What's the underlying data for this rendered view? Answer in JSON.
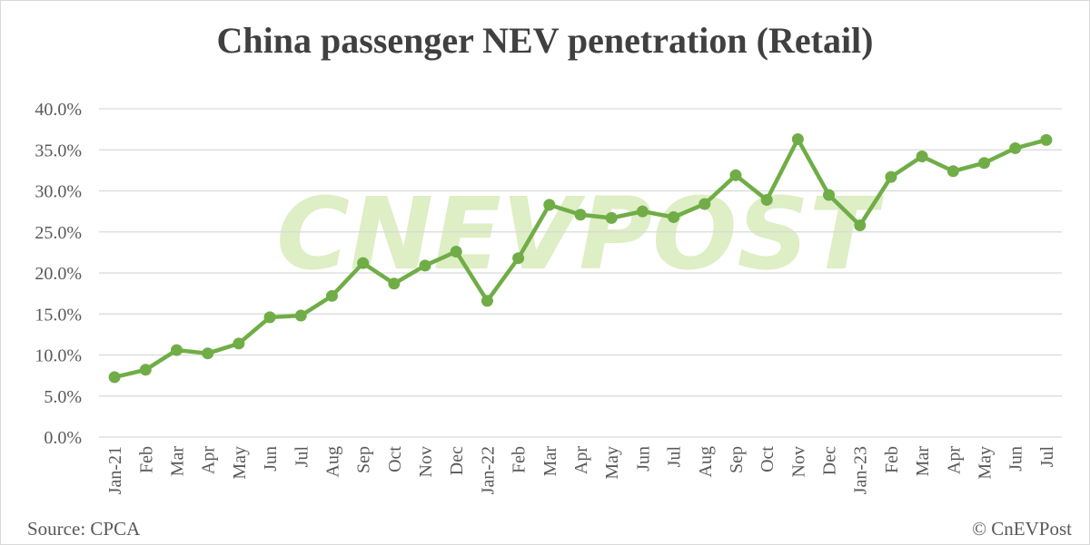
{
  "chart_data": {
    "type": "line",
    "title": "China passenger NEV penetration (Retail)",
    "xlabel": "",
    "ylabel": "",
    "categories": [
      "Jan-21",
      "Feb",
      "Mar",
      "Apr",
      "May",
      "Jun",
      "Jul",
      "Aug",
      "Sep",
      "Oct",
      "Nov",
      "Dec",
      "Jan-22",
      "Feb",
      "Mar",
      "Apr",
      "May",
      "Jun",
      "Jul",
      "Aug",
      "Sep",
      "Oct",
      "Nov",
      "Dec",
      "Jan-23",
      "Feb",
      "Mar",
      "Apr",
      "May",
      "Jun",
      "Jul"
    ],
    "series": [
      {
        "values": [
          7.3,
          8.2,
          10.6,
          10.2,
          11.4,
          14.6,
          14.8,
          17.2,
          21.2,
          18.7,
          20.9,
          22.6,
          16.6,
          21.8,
          28.3,
          27.1,
          26.7,
          27.5,
          26.8,
          28.4,
          31.9,
          28.9,
          36.3,
          29.5,
          25.8,
          31.7,
          34.2,
          32.4,
          33.4,
          35.2,
          36.2
        ],
        "color": "#70ad47"
      }
    ],
    "yticks": [
      "0.0%",
      "5.0%",
      "10.0%",
      "15.0%",
      "20.0%",
      "25.0%",
      "30.0%",
      "35.0%",
      "40.0%"
    ],
    "ylim": [
      0,
      40
    ],
    "y_unit": "%",
    "grid": true,
    "legend": "none"
  },
  "source": "Source: CPCA",
  "watermark": "CNEVPOST",
  "credit": "© CnEVPost"
}
